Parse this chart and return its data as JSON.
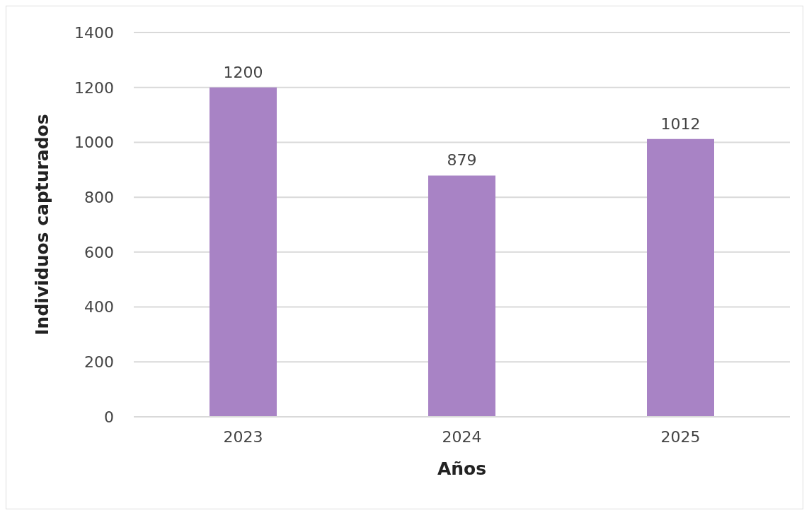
{
  "chart_data": {
    "type": "bar",
    "xlabel": "Años",
    "ylabel": "Individuos capturados",
    "categories": [
      "2023",
      "2024",
      "2025"
    ],
    "values": [
      1200,
      879,
      1012
    ],
    "color": "#a883c5",
    "ylim": [
      0,
      1400
    ],
    "yticks": [
      0,
      200,
      400,
      600,
      800,
      1000,
      1200,
      1400
    ],
    "grid": "y",
    "data_labels": true
  }
}
